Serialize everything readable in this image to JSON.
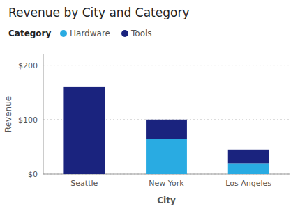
{
  "chart_data": {
    "type": "bar",
    "stacked": true,
    "title": "Revenue by City and Category",
    "xlabel": "City",
    "ylabel": "Revenue",
    "legend_title": "Category",
    "legend": "upper left",
    "grid": true,
    "categories": [
      "Seattle",
      "New York",
      "Los Angeles"
    ],
    "series": [
      {
        "name": "Hardware",
        "color": "#29ABE2",
        "values": [
          0,
          65,
          20
        ]
      },
      {
        "name": "Tools",
        "color": "#1A237E",
        "values": [
          160,
          35,
          25
        ]
      }
    ],
    "ylim": [
      0,
      220
    ],
    "yticks": [
      {
        "value": 0,
        "label": "$0"
      },
      {
        "value": 100,
        "label": "$100"
      },
      {
        "value": 200,
        "label": "$200"
      }
    ]
  }
}
